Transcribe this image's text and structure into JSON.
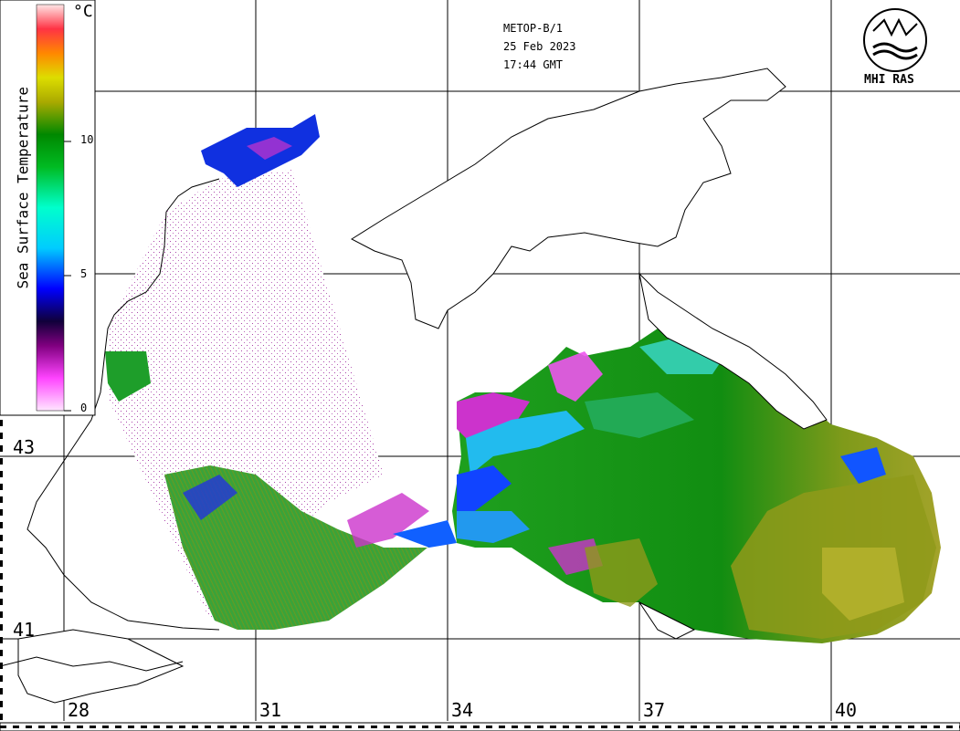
{
  "header": {
    "satellite": "METOP-B/1",
    "date": "25 Feb 2023",
    "time": "17:44 GMT"
  },
  "logo": {
    "name": "MHI RAS",
    "icon": "mhi-ras-logo-icon"
  },
  "legend": {
    "title": "Sea Surface Temperature",
    "unit": "°C",
    "ticks": [
      "0",
      "5",
      "10"
    ],
    "colors": [
      "#ffe6ff",
      "#ff33ff",
      "#800080",
      "#000050",
      "#0000ff",
      "#00ccff",
      "#00ffcc",
      "#00cc33",
      "#008000",
      "#999900",
      "#cccc00",
      "#ff9900",
      "#ff3300",
      "#ff9999",
      "#ffe6e6"
    ]
  },
  "latitudes": [
    "43",
    "41"
  ],
  "longitudes": [
    "28",
    "31",
    "34",
    "37",
    "40"
  ],
  "palette": {
    "land": "#ffffff",
    "cold": "#0020ff",
    "magenta": "#cc33cc",
    "green": "#119a11",
    "olive": "#8f9a1a",
    "cyan": "#33ddcc"
  }
}
